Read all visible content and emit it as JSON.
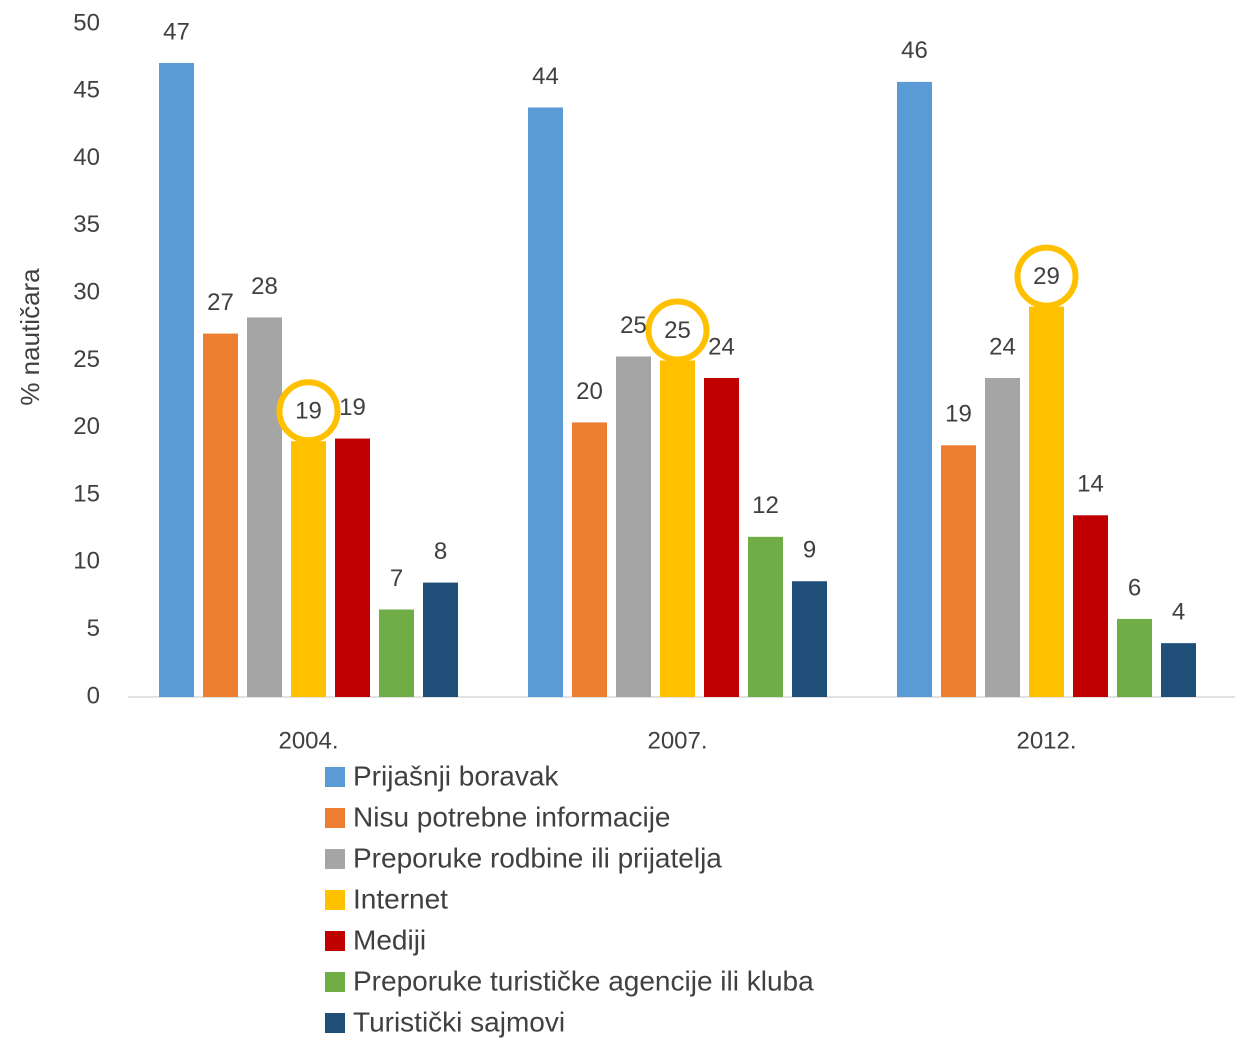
{
  "chart_data": {
    "type": "bar",
    "y_label": "% nautičara",
    "categories": [
      "2004.",
      "2007.",
      "2012."
    ],
    "ylim": [
      0,
      50
    ],
    "yticks": [
      0,
      5,
      10,
      15,
      20,
      25,
      30,
      35,
      40,
      45,
      50
    ],
    "grid": false,
    "legend": "bottom",
    "series": [
      {
        "name": "Prijašnji boravak",
        "color": "#5b9bd5",
        "values": [
          47.1,
          43.8,
          45.7
        ],
        "value_labels": [
          "47",
          "44",
          "46"
        ]
      },
      {
        "name": "Nisu potrebne informacije",
        "color": "#ed7d31",
        "values": [
          27.0,
          20.4,
          18.7
        ],
        "value_labels": [
          "27",
          "20",
          "19"
        ]
      },
      {
        "name": "Preporuke rodbine ili prijatelja",
        "color": "#a5a5a5",
        "values": [
          28.2,
          25.3,
          23.7
        ],
        "value_labels": [
          "28",
          "25",
          "24"
        ]
      },
      {
        "name": "Internet",
        "color": "#ffc000",
        "highlight": true,
        "values": [
          19,
          25,
          29
        ],
        "value_labels": [
          "19",
          "25",
          "29"
        ]
      },
      {
        "name": "Mediji",
        "color": "#c00000",
        "values": [
          19.2,
          23.7,
          13.5
        ],
        "value_labels": [
          "19",
          "24",
          "14"
        ]
      },
      {
        "name": "Preporuke turističke agencije ili kluba",
        "color": "#70ad47",
        "values": [
          6.5,
          11.9,
          5.8
        ],
        "value_labels": [
          "7",
          "12",
          "6"
        ]
      },
      {
        "name": "Turistički sajmovi",
        "color": "#1f4e79",
        "values": [
          8.5,
          8.6,
          4.0
        ],
        "value_labels": [
          "8",
          "9",
          "4"
        ]
      }
    ]
  }
}
